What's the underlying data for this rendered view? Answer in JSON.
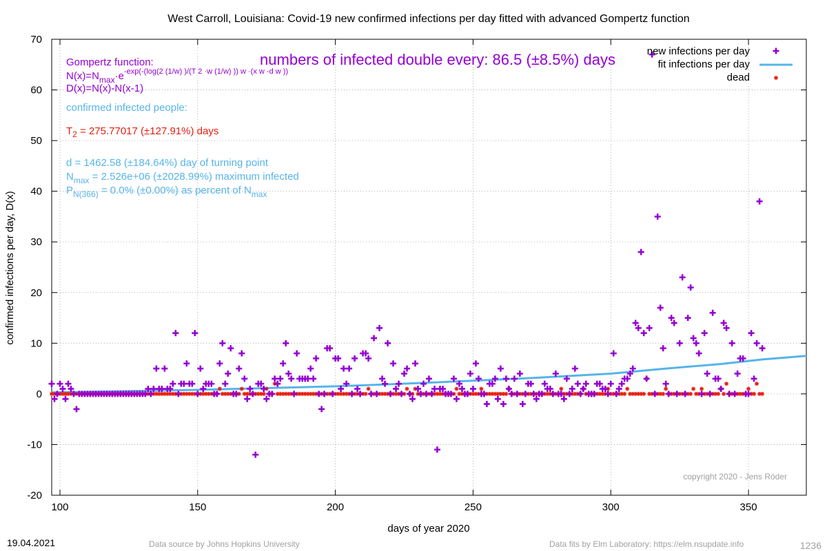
{
  "chart_data": {
    "type": "scatter",
    "title": "West Carroll,  Louisiana: Covid-19 new confirmed infections per day fitted with advanced Gompertz function",
    "xlabel": "days of year 2020",
    "ylabel": "confirmed infections per day, D(x)",
    "xlim": [
      97,
      371
    ],
    "ylim": [
      -20,
      70
    ],
    "xticks": [
      100,
      150,
      200,
      250,
      300,
      350
    ],
    "yticks": [
      -20,
      -10,
      0,
      10,
      20,
      30,
      40,
      50,
      60,
      70
    ],
    "grid": true,
    "legend_position": "top-right",
    "colors": {
      "infections": "#9400d3",
      "fit": "#56b4e9",
      "dead": "#e51e10",
      "red_text": "#e51e10",
      "grey_text": "#a0a0a0"
    },
    "series": [
      {
        "name": "new infections per day",
        "marker": "plus",
        "points": [
          [
            97,
            2
          ],
          [
            98,
            -1
          ],
          [
            99,
            0
          ],
          [
            100,
            2
          ],
          [
            101,
            1
          ],
          [
            102,
            -1
          ],
          [
            103,
            2
          ],
          [
            104,
            1
          ],
          [
            105,
            0
          ],
          [
            106,
            -3
          ],
          [
            107,
            0
          ],
          [
            108,
            0
          ],
          [
            109,
            0
          ],
          [
            110,
            0
          ],
          [
            115,
            0
          ],
          [
            120,
            0
          ],
          [
            125,
            0
          ],
          [
            130,
            0
          ],
          [
            132,
            1
          ],
          [
            133,
            0
          ],
          [
            134,
            1
          ],
          [
            135,
            5
          ],
          [
            136,
            1
          ],
          [
            137,
            1
          ],
          [
            138,
            5
          ],
          [
            139,
            1
          ],
          [
            140,
            1
          ],
          [
            141,
            2
          ],
          [
            142,
            12
          ],
          [
            144,
            2
          ],
          [
            145,
            2
          ],
          [
            146,
            6
          ],
          [
            147,
            2
          ],
          [
            148,
            2
          ],
          [
            149,
            12
          ],
          [
            150,
            0
          ],
          [
            151,
            5
          ],
          [
            152,
            1
          ],
          [
            153,
            2
          ],
          [
            154,
            2
          ],
          [
            155,
            2
          ],
          [
            156,
            0
          ],
          [
            157,
            0
          ],
          [
            158,
            6
          ],
          [
            159,
            10
          ],
          [
            160,
            2
          ],
          [
            161,
            4
          ],
          [
            162,
            9
          ],
          [
            163,
            0
          ],
          [
            164,
            0
          ],
          [
            165,
            5
          ],
          [
            166,
            8
          ],
          [
            167,
            3
          ],
          [
            168,
            -1
          ],
          [
            169,
            1
          ],
          [
            170,
            0
          ],
          [
            171,
            -12
          ],
          [
            172,
            2
          ],
          [
            173,
            2
          ],
          [
            174,
            1
          ],
          [
            175,
            -1
          ],
          [
            176,
            0
          ],
          [
            178,
            3
          ],
          [
            179,
            2
          ],
          [
            180,
            3
          ],
          [
            181,
            6
          ],
          [
            182,
            10
          ],
          [
            183,
            4
          ],
          [
            184,
            3
          ],
          [
            185,
            0
          ],
          [
            186,
            8
          ],
          [
            187,
            3
          ],
          [
            188,
            3
          ],
          [
            189,
            3
          ],
          [
            190,
            3
          ],
          [
            191,
            5
          ],
          [
            192,
            3
          ],
          [
            193,
            7
          ],
          [
            194,
            0
          ],
          [
            195,
            -3
          ],
          [
            196,
            0
          ],
          [
            197,
            9
          ],
          [
            198,
            9
          ],
          [
            199,
            0
          ],
          [
            200,
            7
          ],
          [
            201,
            7
          ],
          [
            202,
            1
          ],
          [
            203,
            5
          ],
          [
            204,
            2
          ],
          [
            205,
            5
          ],
          [
            206,
            0
          ],
          [
            207,
            7
          ],
          [
            208,
            1
          ],
          [
            209,
            0
          ],
          [
            210,
            8
          ],
          [
            211,
            8
          ],
          [
            212,
            7
          ],
          [
            213,
            0
          ],
          [
            214,
            11
          ],
          [
            215,
            0
          ],
          [
            216,
            13
          ],
          [
            217,
            3
          ],
          [
            218,
            2
          ],
          [
            219,
            10
          ],
          [
            220,
            0
          ],
          [
            221,
            6
          ],
          [
            222,
            1
          ],
          [
            223,
            2
          ],
          [
            224,
            0
          ],
          [
            225,
            4
          ],
          [
            226,
            5
          ],
          [
            227,
            0
          ],
          [
            228,
            -1
          ],
          [
            229,
            6
          ],
          [
            230,
            1
          ],
          [
            231,
            0
          ],
          [
            232,
            2
          ],
          [
            233,
            0
          ],
          [
            234,
            3
          ],
          [
            235,
            0
          ],
          [
            236,
            1
          ],
          [
            237,
            -11
          ],
          [
            238,
            1
          ],
          [
            239,
            1
          ],
          [
            240,
            0
          ],
          [
            241,
            0
          ],
          [
            242,
            0
          ],
          [
            243,
            3
          ],
          [
            244,
            -1
          ],
          [
            245,
            2
          ],
          [
            246,
            1
          ],
          [
            247,
            0
          ],
          [
            248,
            0
          ],
          [
            249,
            4
          ],
          [
            250,
            1
          ],
          [
            251,
            6
          ],
          [
            252,
            3
          ],
          [
            253,
            0
          ],
          [
            254,
            0
          ],
          [
            255,
            -2
          ],
          [
            256,
            2
          ],
          [
            257,
            2
          ],
          [
            258,
            3
          ],
          [
            259,
            -1
          ],
          [
            260,
            5
          ],
          [
            261,
            -2
          ],
          [
            262,
            3
          ],
          [
            263,
            1
          ],
          [
            264,
            0
          ],
          [
            265,
            3
          ],
          [
            266,
            0
          ],
          [
            267,
            4
          ],
          [
            268,
            -2
          ],
          [
            269,
            0
          ],
          [
            270,
            2
          ],
          [
            271,
            2
          ],
          [
            272,
            0
          ],
          [
            273,
            -1
          ],
          [
            274,
            0
          ],
          [
            275,
            0
          ],
          [
            276,
            2
          ],
          [
            277,
            1
          ],
          [
            278,
            1
          ],
          [
            279,
            0
          ],
          [
            280,
            4
          ],
          [
            281,
            0
          ],
          [
            282,
            0
          ],
          [
            283,
            -1
          ],
          [
            284,
            3
          ],
          [
            285,
            0
          ],
          [
            286,
            1
          ],
          [
            287,
            5
          ],
          [
            288,
            2
          ],
          [
            289,
            0
          ],
          [
            290,
            1
          ],
          [
            291,
            2
          ],
          [
            292,
            0
          ],
          [
            293,
            0
          ],
          [
            294,
            0
          ],
          [
            295,
            2
          ],
          [
            296,
            2
          ],
          [
            297,
            1
          ],
          [
            298,
            1
          ],
          [
            299,
            0
          ],
          [
            300,
            2
          ],
          [
            301,
            8
          ],
          [
            302,
            0
          ],
          [
            303,
            1
          ],
          [
            304,
            2
          ],
          [
            305,
            3
          ],
          [
            306,
            3
          ],
          [
            307,
            4
          ],
          [
            308,
            5
          ],
          [
            309,
            14
          ],
          [
            310,
            13
          ],
          [
            311,
            28
          ],
          [
            312,
            12
          ],
          [
            313,
            3
          ],
          [
            314,
            13
          ],
          [
            315,
            67
          ],
          [
            316,
            0
          ],
          [
            317,
            35
          ],
          [
            318,
            17
          ],
          [
            319,
            9
          ],
          [
            320,
            2
          ],
          [
            321,
            0
          ],
          [
            322,
            15
          ],
          [
            323,
            14
          ],
          [
            324,
            0
          ],
          [
            325,
            10
          ],
          [
            326,
            23
          ],
          [
            327,
            0
          ],
          [
            328,
            15
          ],
          [
            329,
            21
          ],
          [
            330,
            11
          ],
          [
            331,
            10
          ],
          [
            332,
            8
          ],
          [
            333,
            0
          ],
          [
            334,
            12
          ],
          [
            335,
            4
          ],
          [
            336,
            0
          ],
          [
            337,
            16
          ],
          [
            338,
            3
          ],
          [
            339,
            3
          ],
          [
            340,
            1
          ],
          [
            341,
            14
          ],
          [
            342,
            13
          ],
          [
            343,
            0
          ],
          [
            344,
            10
          ],
          [
            345,
            0
          ],
          [
            346,
            4
          ],
          [
            347,
            7
          ],
          [
            348,
            7
          ],
          [
            349,
            0
          ],
          [
            350,
            0
          ],
          [
            351,
            12
          ],
          [
            352,
            3
          ],
          [
            353,
            10
          ],
          [
            354,
            38
          ],
          [
            355,
            9
          ]
        ]
      },
      {
        "name": "fit infections per day",
        "marker": "line",
        "points": [
          [
            97,
            0.3
          ],
          [
            120,
            0.5
          ],
          [
            150,
            0.8
          ],
          [
            200,
            1.5
          ],
          [
            220,
            1.9
          ],
          [
            250,
            2.6
          ],
          [
            270,
            3.1
          ],
          [
            300,
            4.0
          ],
          [
            320,
            5.0
          ],
          [
            340,
            5.9
          ],
          [
            355,
            6.8
          ],
          [
            371,
            7.5
          ]
        ]
      },
      {
        "name": "dead",
        "marker": "star",
        "points": [
          [
            158,
            1
          ],
          [
            166,
            1
          ],
          [
            175,
            1
          ],
          [
            178,
            2
          ],
          [
            212,
            1
          ],
          [
            226,
            1
          ],
          [
            229,
            1
          ],
          [
            244,
            1
          ],
          [
            253,
            1
          ],
          [
            263,
            1
          ],
          [
            282,
            1
          ],
          [
            290,
            1
          ],
          [
            299,
            1
          ],
          [
            306,
            1
          ],
          [
            313,
            3
          ],
          [
            320,
            1
          ],
          [
            330,
            1
          ],
          [
            333,
            1
          ],
          [
            340,
            1
          ],
          [
            342,
            2
          ],
          [
            350,
            1
          ],
          [
            353,
            2
          ]
        ]
      }
    ]
  },
  "annotations": {
    "gompertz_title": "Gompertz function:",
    "formula_n_prefix": "N(x)=N",
    "formula_n_sub": "max",
    "formula_n_mid": "·e",
    "formula_n_sup": "-exp(-(log(2 (1/w) )/(T 2 ·w (1/w) )) w ·(x w -d w ))",
    "formula_d": "D(x)=N(x)-N(x-1)",
    "confirmed_label": "confirmed infected people:",
    "t2_prefix": "T",
    "t2_sub": "2",
    "t2_value": " = 275.77017 (±127.91%) days",
    "d_value": "d = 1462.58 (±184.64%) day of turning point",
    "nmax_prefix": "N",
    "nmax_sub": "max",
    "nmax_value": " = 2.526e+06 (±2028.99%) maximum infected",
    "p_prefix": "P",
    "p_sub": "N(366)",
    "p_value": " = 0.0% (±0.00%) as percent of N",
    "p_sub2": "max",
    "doubling": "numbers of infected double every: 86.5 (±8.5%) days",
    "copyright": "copyright 2020 - Jens Röder"
  },
  "footer": {
    "date": "19.04.2021",
    "source": "Data source by Johns Hopkins University",
    "fits": "Data fits by Elm Laboratory: https://elm.nsupdate.info",
    "page": "1236"
  }
}
